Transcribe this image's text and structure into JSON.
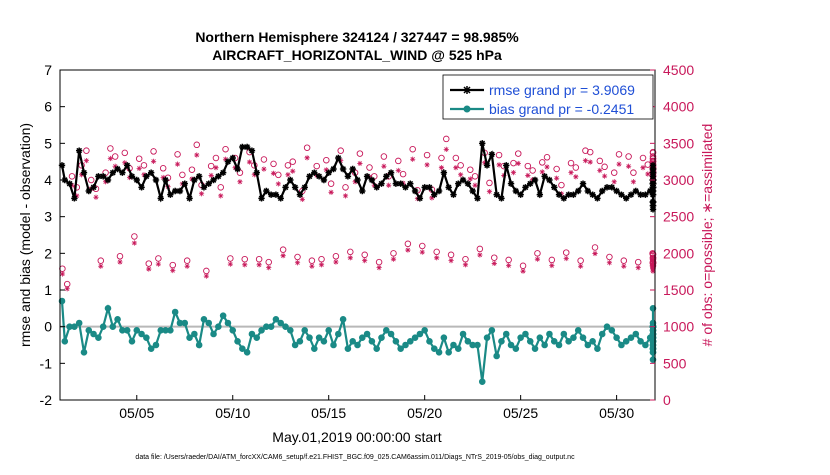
{
  "chart_data": {
    "type": "line",
    "title": "Northern Hemisphere 324124 / 327447 = 98.985%",
    "subtitle": "AIRCRAFT_HORIZONTAL_WIND @ 525 hPa",
    "xlabel": "May.01,2019 00:00:00 start",
    "ylabel_left": "rmse and bias (model - observation)",
    "ylabel_right": "# of obs: o=possible; ∗=assimilated",
    "footer": "data file: /Users/raeder/DAI/ATM_forcXX/CAM6_setup/f.e21.FHIST_BGC.f09_025.CAM6assim.011/Diags_NTrS_2019-05/obs_diag_output.nc",
    "xlim": [
      1,
      32
    ],
    "ylim_left": [
      -2,
      7
    ],
    "ylim_right": [
      0,
      4500
    ],
    "x_tick_labels": [
      "05/05",
      "05/10",
      "05/15",
      "05/20",
      "05/25",
      "05/30"
    ],
    "x_tick_values": [
      5,
      10,
      15,
      20,
      25,
      30
    ],
    "y_left_ticks": [
      "-2",
      "-1",
      "0",
      "1",
      "2",
      "3",
      "4",
      "5",
      "6",
      "7"
    ],
    "y_right_ticks": [
      "0",
      "500",
      "1000",
      "1500",
      "2000",
      "2500",
      "3000",
      "3500",
      "4000",
      "4500"
    ],
    "legend": [
      {
        "name": "rmse grand pr = 3.9069",
        "color": "#000000"
      },
      {
        "name": "bias grand pr = -0.2451",
        "color": "#1a8a86"
      }
    ],
    "colors": {
      "rmse": "#000000",
      "bias": "#1a8a86",
      "counts": "#c8185a",
      "legend_text": "#1f4fd6",
      "zero_line": "#b8b8b8"
    },
    "step_days": 0.25,
    "rmse": [
      4.4,
      4.0,
      3.9,
      3.5,
      4.8,
      4.2,
      3.7,
      3.8,
      4.1,
      4.1,
      4.0,
      4.2,
      4.3,
      4.2,
      4.4,
      4.1,
      4.0,
      3.8,
      4.1,
      4.2,
      4.0,
      3.5,
      4.0,
      3.6,
      3.7,
      3.7,
      3.9,
      3.5,
      4.0,
      4.1,
      3.8,
      3.9,
      4.0,
      4.1,
      4.2,
      4.5,
      4.6,
      4.3,
      4.9,
      4.9,
      4.8,
      4.2,
      3.5,
      3.7,
      3.6,
      3.6,
      3.5,
      3.8,
      4.0,
      3.8,
      3.6,
      3.8,
      4.1,
      4.2,
      4.1,
      4.0,
      4.2,
      4.3,
      4.6,
      4.3,
      4.1,
      4.3,
      4.0,
      3.7,
      4.1,
      4.0,
      3.8,
      3.9,
      4.1,
      4.2,
      3.9,
      3.9,
      3.8,
      3.9,
      3.7,
      3.5,
      3.8,
      3.8,
      3.6,
      3.7,
      4.2,
      3.8,
      3.6,
      3.9,
      4.0,
      3.9,
      3.7,
      3.5,
      5.0,
      4.4,
      4.7,
      3.6,
      3.5,
      4.4,
      3.9,
      3.7,
      3.6,
      3.8,
      3.9,
      4.0,
      3.6,
      4.1,
      4.0,
      3.8,
      3.6,
      3.5,
      3.6,
      3.6,
      3.7,
      3.9,
      3.7,
      3.6,
      3.5,
      3.7,
      3.8,
      3.8,
      3.7,
      3.6,
      3.5,
      3.6,
      3.7,
      3.6,
      3.6,
      3.7,
      3.7,
      3.8,
      3.9,
      3.9,
      4.2,
      4.0,
      3.8,
      3.6,
      3.9,
      4.0,
      3.9,
      4.0,
      3.9,
      4.3,
      4.1,
      3.8,
      3.9,
      4.2,
      4.4,
      3.9,
      4.0,
      3.8,
      4.0,
      4.0,
      3.9,
      3.7,
      3.4,
      3.9,
      4.3,
      3.8,
      3.9,
      3.6,
      3.4,
      3.4,
      3.2,
      3.3,
      3.3,
      3.4
    ],
    "bias": [
      0.7,
      -0.4,
      0.0,
      0.0,
      0.1,
      -0.7,
      -0.1,
      -0.2,
      -0.3,
      0.0,
      0.5,
      0.0,
      0.2,
      -0.1,
      -0.1,
      -0.4,
      -0.1,
      -0.2,
      -0.3,
      -0.6,
      -0.5,
      -0.1,
      -0.1,
      -0.1,
      0.4,
      0.1,
      0.1,
      -0.3,
      -0.2,
      -0.5,
      0.2,
      0.1,
      -0.2,
      0.0,
      0.3,
      0.1,
      -0.1,
      -0.4,
      -0.6,
      -0.7,
      -0.2,
      -0.3,
      -0.1,
      0.0,
      0.0,
      0.2,
      0.1,
      0.0,
      -0.1,
      -0.5,
      -0.4,
      -0.1,
      -0.3,
      -0.6,
      -0.3,
      -0.4,
      -0.1,
      -0.5,
      -0.2,
      0.2,
      -0.6,
      -0.4,
      -0.5,
      -0.3,
      -0.2,
      -0.4,
      -0.6,
      -0.3,
      -0.1,
      -0.2,
      -0.4,
      -0.6,
      -0.5,
      -0.4,
      -0.3,
      -0.2,
      -0.1,
      -0.4,
      -0.6,
      -0.7,
      -0.3,
      -0.7,
      -0.5,
      -0.6,
      -0.2,
      -0.4,
      -0.5,
      -0.5,
      -1.5,
      -0.3,
      -0.1,
      -0.8,
      -0.4,
      -0.2,
      -0.5,
      -0.6,
      -0.3,
      -0.2,
      -0.4,
      -0.6,
      -0.3,
      -0.5,
      -0.2,
      -0.4,
      -0.5,
      -0.2,
      -0.4,
      -0.3,
      -0.1,
      -0.3,
      -0.5,
      -0.4,
      -0.6,
      -0.2,
      0.0,
      -0.1,
      -0.3,
      -0.5,
      -0.4,
      -0.3,
      -0.2,
      -0.4,
      -0.5,
      -0.3,
      -0.1,
      -0.2,
      -0.4,
      0.0,
      -0.6,
      -0.3,
      -0.5,
      0.0,
      -0.4,
      0.5,
      0.1,
      -0.2,
      -0.3,
      0.0,
      -0.4,
      -0.2,
      -0.1,
      -0.4,
      -0.7,
      0.0,
      0.0,
      0.0,
      0.0,
      -0.1,
      0.0,
      -0.6,
      -0.2,
      -0.9,
      0.0,
      -0.3,
      -0.4,
      -0.5,
      -0.7,
      -0.6,
      -0.4,
      0.0,
      0.0,
      0.0
    ],
    "obs_possible": [
      1790,
      1580,
      3050,
      2900,
      3200,
      3400,
      3000,
      2880,
      1900,
      3100,
      3430,
      3320,
      1960,
      3370,
      3160,
      2230,
      3290,
      3200,
      1860,
      3390,
      1930,
      3160,
      3030,
      1840,
      3350,
      3070,
      1900,
      3140,
      3480,
      2930,
      1760,
      3190,
      3300,
      2900,
      3420,
      1930,
      3300,
      3100,
      1920,
      3380,
      3200,
      1920,
      3280,
      1880,
      3220,
      3070,
      2050,
      3200,
      3250,
      1950,
      2850,
      3440,
      1900,
      3190,
      1920,
      3270,
      2950,
      1960,
      3400,
      2900,
      2020,
      3100,
      3360,
      1980,
      3170,
      3050,
      1880,
      3320,
      3050,
      2000,
      3260,
      3080,
      2130,
      3420,
      2860,
      2100,
      3340,
      2870,
      2020,
      3300,
      3560,
      1980,
      3300,
      3200,
      1920,
      3140,
      3050,
      2060,
      3370,
      2960,
      1940,
      3340,
      3190,
      1910,
      3230,
      3360,
      1830,
      3190,
      3130,
      2000,
      3240,
      3310,
      1910,
      3150,
      2930,
      2010,
      3230,
      3170,
      1900,
      3400,
      3380,
      2080,
      3260,
      3180,
      1950,
      3100,
      3350,
      1900,
      3320,
      3100,
      1880,
      3300,
      3210,
      2000,
      3120,
      3160,
      1870,
      3180,
      3250,
      1990,
      3290,
      3260,
      1870,
      3090,
      3000,
      1920,
      3220,
      3370,
      1880,
      3140,
      3050,
      1940,
      3170,
      3320,
      1870,
      3210,
      3100,
      1880,
      3290,
      3250,
      1940,
      3110,
      3160,
      1980,
      3380,
      3060,
      1860,
      3250,
      3090,
      1830
    ]
  }
}
